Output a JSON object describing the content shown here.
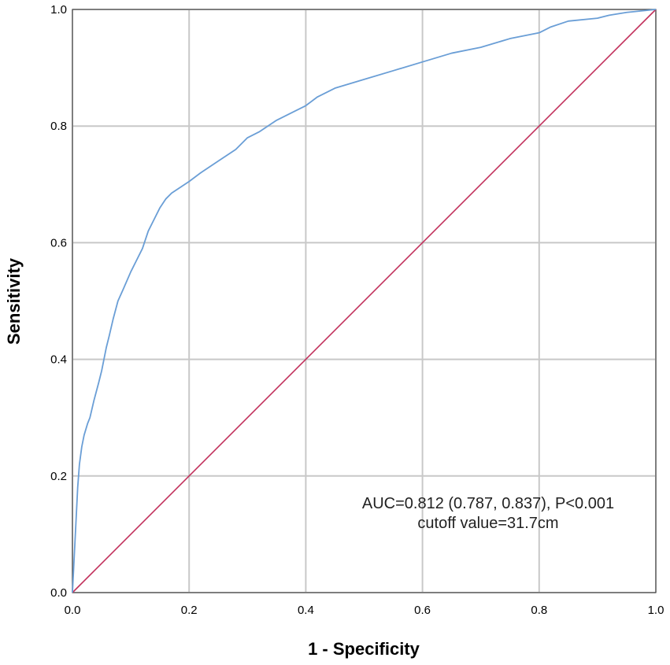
{
  "chart_data": {
    "type": "line",
    "title": "",
    "xlabel": "1 - Specificity",
    "ylabel": "Sensitivity",
    "xlim": [
      0.0,
      1.0
    ],
    "ylim": [
      0.0,
      1.0
    ],
    "xticks": [
      "0.0",
      "0.2",
      "0.4",
      "0.6",
      "0.8",
      "1.0"
    ],
    "yticks": [
      "0.0",
      "0.2",
      "0.4",
      "0.6",
      "0.8",
      "1.0"
    ],
    "grid": true,
    "legend": "none",
    "annotation": {
      "line1": "AUC=0.812 (0.787, 0.837), P<0.001",
      "line2": "cutoff value=31.7cm"
    },
    "series": [
      {
        "color": "#6a9ed6",
        "x": [
          0.0,
          0.003,
          0.006,
          0.009,
          0.012,
          0.016,
          0.02,
          0.026,
          0.03,
          0.037,
          0.045,
          0.05,
          0.058,
          0.063,
          0.07,
          0.078,
          0.087,
          0.1,
          0.11,
          0.12,
          0.13,
          0.14,
          0.15,
          0.16,
          0.17,
          0.185,
          0.2,
          0.22,
          0.25,
          0.28,
          0.3,
          0.32,
          0.35,
          0.38,
          0.4,
          0.42,
          0.45,
          0.5,
          0.55,
          0.6,
          0.65,
          0.7,
          0.75,
          0.8,
          0.82,
          0.85,
          0.9,
          0.92,
          0.95,
          0.98,
          1.0
        ],
        "y": [
          0.0,
          0.06,
          0.12,
          0.18,
          0.22,
          0.25,
          0.27,
          0.29,
          0.3,
          0.33,
          0.36,
          0.38,
          0.42,
          0.44,
          0.47,
          0.5,
          0.52,
          0.55,
          0.57,
          0.59,
          0.62,
          0.64,
          0.66,
          0.675,
          0.685,
          0.695,
          0.705,
          0.72,
          0.74,
          0.76,
          0.78,
          0.79,
          0.81,
          0.825,
          0.835,
          0.85,
          0.865,
          0.88,
          0.895,
          0.91,
          0.925,
          0.935,
          0.95,
          0.96,
          0.97,
          0.98,
          0.985,
          0.99,
          0.995,
          0.998,
          1.0
        ]
      },
      {
        "color": "#c2315c",
        "x": [
          0.0,
          1.0
        ],
        "y": [
          0.0,
          1.0
        ]
      }
    ]
  }
}
